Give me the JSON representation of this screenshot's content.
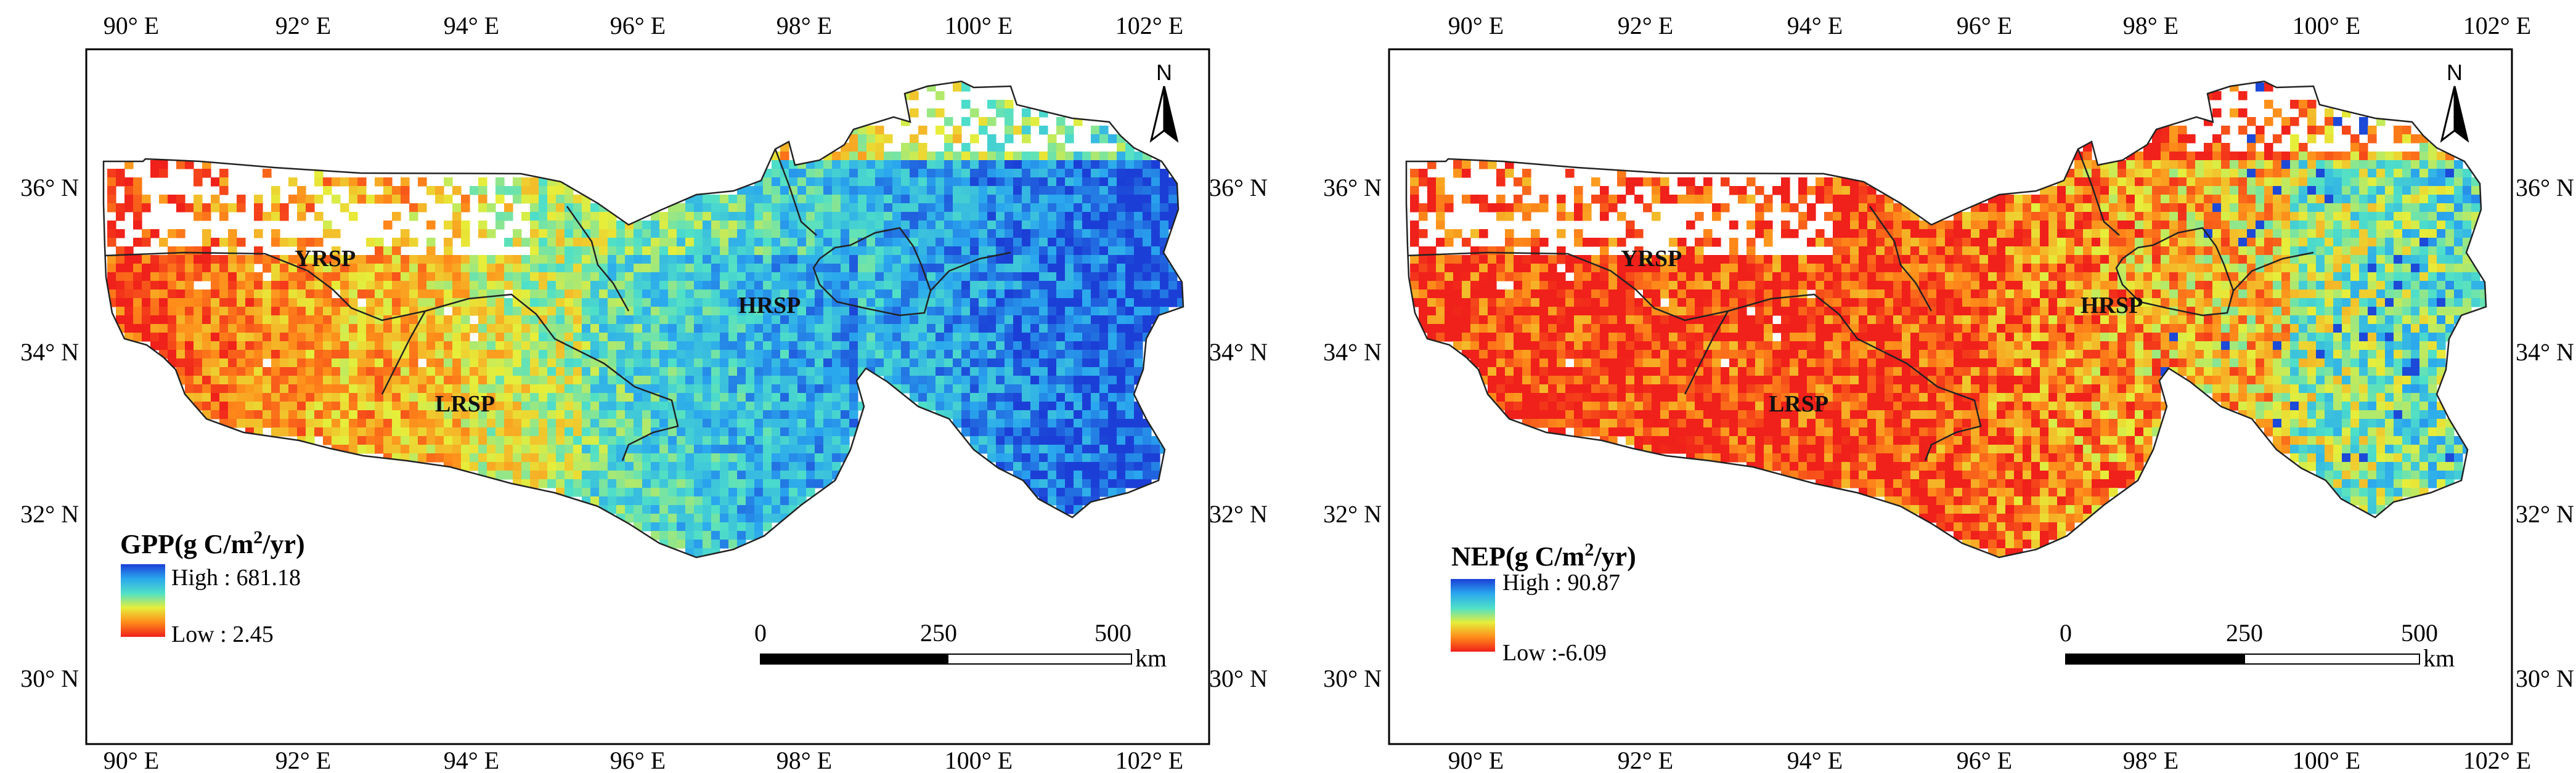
{
  "panels": [
    {
      "id": "gpp",
      "legend": {
        "title_prefix": "GPP(g C/m",
        "title_sup": "2",
        "title_suffix": "/yr)",
        "high_label": "High : 681.18",
        "low_label": "Low : 2.45",
        "colors": [
          "#1b3fd6",
          "#2aa7ee",
          "#4fe0c8",
          "#e6ee3a",
          "#ff8c1a",
          "#f0201a"
        ]
      },
      "regions": [
        "YRSP",
        "LRSP",
        "HRSP"
      ],
      "x_ticks": [
        "90° E",
        "92° E",
        "94° E",
        "96° E",
        "98° E",
        "100° E",
        "102° E"
      ],
      "y_ticks": [
        "36° N",
        "34° N",
        "32° N",
        "30° N"
      ],
      "scale_bar": {
        "labels": [
          "0",
          "250",
          "500"
        ],
        "unit": "km"
      },
      "north_label": "N",
      "field_profile": "gpp"
    },
    {
      "id": "nep",
      "legend": {
        "title_prefix": "NEP(g C/m",
        "title_sup": "2",
        "title_suffix": "/yr)",
        "high_label": "High : 90.87",
        "low_label": "Low :-6.09",
        "colors": [
          "#1b3fd6",
          "#2aa7ee",
          "#4fe0c8",
          "#e6ee3a",
          "#ff8c1a",
          "#f0201a"
        ]
      },
      "regions": [
        "YRSP",
        "LRSP",
        "HRSP"
      ],
      "x_ticks": [
        "90° E",
        "92° E",
        "94° E",
        "96° E",
        "98° E",
        "100° E",
        "102° E"
      ],
      "y_ticks": [
        "36° N",
        "34° N",
        "32° N",
        "30° N"
      ],
      "scale_bar": {
        "labels": [
          "0",
          "250",
          "500"
        ],
        "unit": "km"
      },
      "north_label": "N",
      "field_profile": "nep"
    }
  ]
}
